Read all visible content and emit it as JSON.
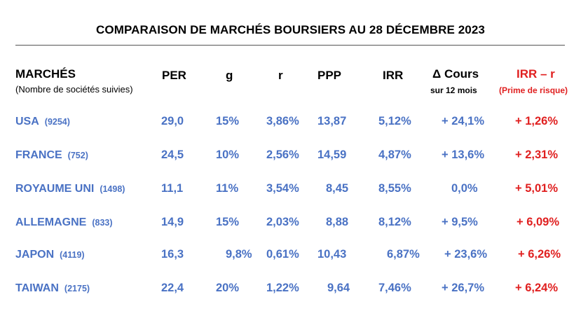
{
  "title": "COMPARAISON DE MARCHÉS BOURSIERS AU 28 DÉCEMBRE 2023",
  "header": {
    "markets": "MARCHÉS",
    "markets_sub": "(Nombre de sociétés suivies)",
    "per": "PER",
    "g": "g",
    "r": "r",
    "ppp": "PPP",
    "irr": "IRR",
    "cours": "Δ Cours",
    "cours_sub": "sur 12 mois",
    "irr_r": "IRR – r",
    "irr_r_sub": "(Prime de risque)"
  },
  "colors": {
    "blue": "#4a72c4",
    "red": "#e02020",
    "black": "#000000"
  },
  "rows": [
    {
      "market": "USA",
      "count": "(9254)",
      "per": "29,0",
      "g": "15%",
      "r": "3,86%",
      "ppp": "13,87",
      "irr": "5,12%",
      "cours": "+ 24,1%",
      "irr_r": "+ 1,26%"
    },
    {
      "market": "FRANCE",
      "count": "(752)",
      "per": "24,5",
      "g": "10%",
      "r": "2,56%",
      "ppp": "14,59",
      "irr": "4,87%",
      "cours": "+ 13,6%",
      "irr_r": "+ 2,31%"
    },
    {
      "market": "ROYAUME UNI",
      "count": "(1498)",
      "per": "11,1",
      "g": "11%",
      "r": "3,54%",
      "ppp": "8,45",
      "irr": "8,55%",
      "cours": "0,0%",
      "irr_r": "+ 5,01%"
    },
    {
      "market": "ALLEMAGNE",
      "count": "(833)",
      "per": "14,9",
      "g": "15%",
      "r": "2,03%",
      "ppp": "8,88",
      "irr": "8,12%",
      "cours": "+  9,5%",
      "irr_r": "+ 6,09%"
    },
    {
      "market": "JAPON",
      "count": "(4119)",
      "per": "16,3",
      "g": "9,8%",
      "r": "0,61%",
      "ppp": "10,43",
      "irr": "6,87%",
      "cours": "+ 23,6%",
      "irr_r": "+ 6,26%"
    },
    {
      "market": "TAIWAN",
      "count": "(2175)",
      "per": "22,4",
      "g": "20%",
      "r": "1,22%",
      "ppp": "9,64",
      "irr": "7,46%",
      "cours": "+ 26,7%",
      "irr_r": "+ 6,24%"
    }
  ]
}
